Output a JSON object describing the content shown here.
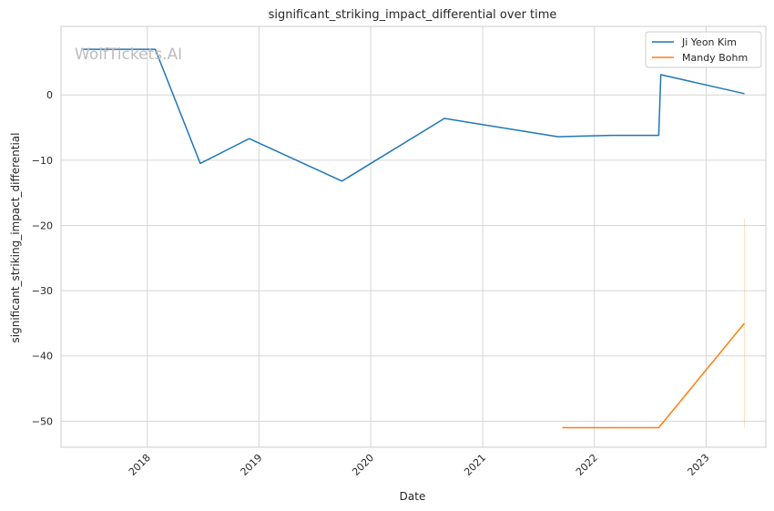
{
  "watermark": "WolfTickets.AI",
  "chart_data": {
    "type": "line",
    "title": "significant_striking_impact_differential over time",
    "xlabel": "Date",
    "ylabel": "significant_striking_impact_differential",
    "x_type": "date",
    "xlim": [
      "2017-03-25",
      "2023-07-15"
    ],
    "ylim": [
      -54,
      10.5
    ],
    "x_ticks": [
      {
        "date": "2018-01-01",
        "label": "2018"
      },
      {
        "date": "2019-01-01",
        "label": "2019"
      },
      {
        "date": "2020-01-01",
        "label": "2020"
      },
      {
        "date": "2021-01-01",
        "label": "2021"
      },
      {
        "date": "2022-01-01",
        "label": "2022"
      },
      {
        "date": "2023-01-01",
        "label": "2023"
      }
    ],
    "y_ticks": [
      0,
      -10,
      -20,
      -30,
      -40,
      -50
    ],
    "y_tick_labels": [
      "0",
      "−10",
      "−20",
      "−30",
      "−40",
      "−50"
    ],
    "grid": true,
    "legend_position": "top-right",
    "series": [
      {
        "name": "Ji Yeon Kim",
        "color": "#1f77b4",
        "points": [
          {
            "x": "2017-06-03",
            "y": 7
          },
          {
            "x": "2018-01-27",
            "y": 7
          },
          {
            "x": "2018-06-23",
            "y": -10.5
          },
          {
            "x": "2018-11-30",
            "y": -6.7
          },
          {
            "x": "2019-09-29",
            "y": -13.2
          },
          {
            "x": "2020-08-29",
            "y": -3.6
          },
          {
            "x": "2021-09-04",
            "y": -6.4
          },
          {
            "x": "2022-02-26",
            "y": -6.2
          },
          {
            "x": "2022-07-30",
            "y": -6.2
          },
          {
            "x": "2022-08-06",
            "y": 3.1
          },
          {
            "x": "2023-05-06",
            "y": 0.2
          }
        ]
      },
      {
        "name": "Mandy Bohm",
        "color": "#ff7f0e",
        "points": [
          {
            "x": "2021-09-18",
            "y": -51
          },
          {
            "x": "2022-07-30",
            "y": -51
          },
          {
            "x": "2023-05-06",
            "y": -35
          }
        ]
      }
    ],
    "error_band": {
      "x": "2023-05-06",
      "y_low": -51,
      "y_high": -19,
      "color": "#ff7f0e"
    }
  }
}
